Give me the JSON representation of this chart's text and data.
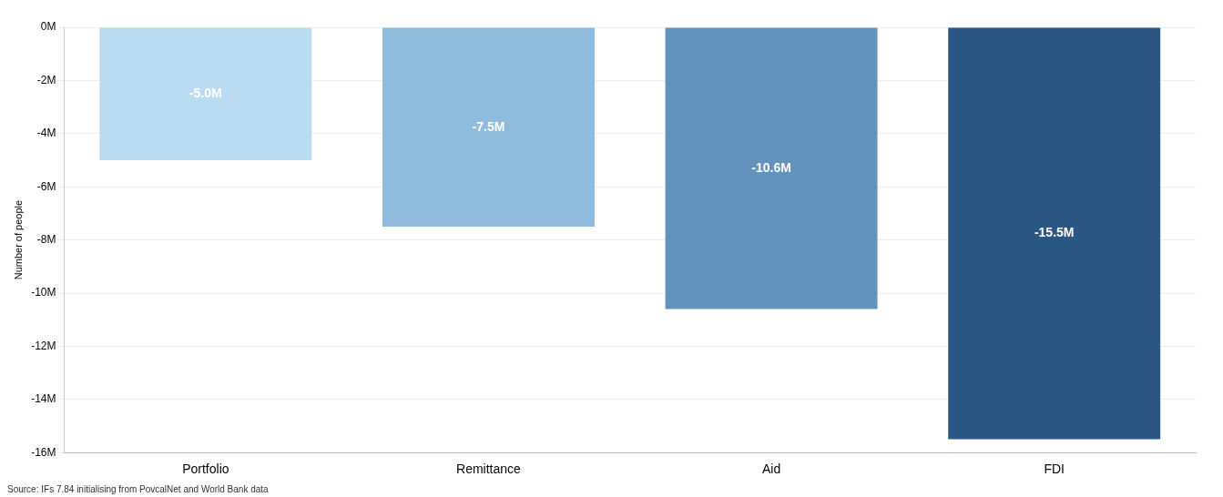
{
  "chart_data": {
    "type": "bar",
    "ylabel": "Number of people",
    "categories": [
      "Portfolio",
      "Remittance",
      "Aid",
      "FDI"
    ],
    "values": [
      -5.0,
      -7.5,
      -10.6,
      -15.5
    ],
    "colors": [
      "#b9dcf0",
      "#8fbcdc",
      "#6393bd",
      "#2a5783"
    ],
    "value_labels": [
      "-5.0M",
      "-7.5M",
      "-10.6M",
      "-15.5M"
    ],
    "ylim": [
      -16,
      0
    ],
    "yticks": [
      {
        "value": -16,
        "label": "-16M"
      },
      {
        "value": -14,
        "label": "-14M"
      },
      {
        "value": -12,
        "label": "-12M"
      },
      {
        "value": -10,
        "label": "-10M"
      },
      {
        "value": -8,
        "label": "-8M"
      },
      {
        "value": -6,
        "label": "-6M"
      },
      {
        "value": -4,
        "label": "-4M"
      },
      {
        "value": -2,
        "label": "-2M"
      },
      {
        "value": 0,
        "label": "0M"
      }
    ],
    "grid": "y",
    "annotations": [
      "Source: IFs 7.84 initialising from PovcalNet and World Bank data"
    ]
  }
}
